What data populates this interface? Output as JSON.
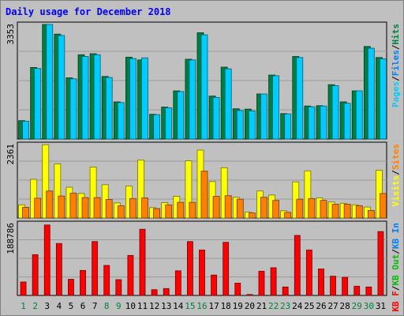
{
  "title": "Daily usage for December 2018",
  "colors": {
    "background": "#c0c0c0",
    "pages": "#00ffff",
    "files": "#00ccff",
    "hits": "#008040",
    "visits": "#ffff00",
    "sites": "#ff8000",
    "kb_in": "#0080ff",
    "kb_out": "#00c000",
    "kb_f": "#ff0000",
    "title": "#0000ff",
    "day_normal": "#000000",
    "day_weekend": "#008040"
  },
  "chart_data": [
    {
      "type": "bar",
      "panel": "top",
      "ymax_label": "3353",
      "ylim": [
        0,
        3353
      ],
      "right_labels": [
        {
          "text": "Pages",
          "color": "#00ccff"
        },
        {
          "text": "/",
          "color": "#000000"
        },
        {
          "text": "Files",
          "color": "#0080ff"
        },
        {
          "text": "/",
          "color": "#000000"
        },
        {
          "text": "Hits",
          "color": "#008040"
        }
      ],
      "categories": [
        "1",
        "2",
        "3",
        "4",
        "5",
        "6",
        "7",
        "8",
        "9",
        "10",
        "11",
        "12",
        "13",
        "14",
        "15",
        "16",
        "17",
        "18",
        "19",
        "20",
        "21",
        "22",
        "23",
        "24",
        "25",
        "26",
        "27",
        "28",
        "29",
        "30",
        "31"
      ],
      "series": [
        {
          "name": "Hits",
          "values": [
            535,
            2080,
            3330,
            3050,
            1780,
            2450,
            2480,
            1820,
            1080,
            2380,
            2300,
            720,
            930,
            1400,
            2320,
            3090,
            1250,
            2090,
            880,
            870,
            1310,
            1860,
            740,
            2400,
            960,
            970,
            1580,
            1080,
            1400,
            2690,
            2370
          ]
        },
        {
          "name": "Files",
          "values": [
            520,
            2050,
            3330,
            3010,
            1750,
            2400,
            2450,
            1790,
            1060,
            2340,
            2360,
            710,
            910,
            1380,
            2300,
            3030,
            1210,
            2040,
            830,
            820,
            1310,
            1840,
            730,
            2370,
            940,
            960,
            1550,
            1040,
            1400,
            2640,
            2330
          ]
        }
      ]
    },
    {
      "type": "bar",
      "panel": "middle",
      "ymax_label": "2361",
      "ylim": [
        0,
        2361
      ],
      "right_labels": [
        {
          "text": "Visits",
          "color": "#ffff00"
        },
        {
          "text": "/",
          "color": "#000000"
        },
        {
          "text": "Sites",
          "color": "#ff8000"
        }
      ],
      "categories": [
        "1",
        "2",
        "3",
        "4",
        "5",
        "6",
        "7",
        "8",
        "9",
        "10",
        "11",
        "12",
        "13",
        "14",
        "15",
        "16",
        "17",
        "18",
        "19",
        "20",
        "21",
        "22",
        "23",
        "24",
        "25",
        "26",
        "27",
        "28",
        "29",
        "30",
        "31"
      ],
      "series": [
        {
          "name": "Visits",
          "values": [
            420,
            1230,
            2330,
            1720,
            980,
            780,
            1620,
            1060,
            480,
            1020,
            1840,
            330,
            490,
            690,
            1820,
            2160,
            1160,
            1600,
            660,
            190,
            860,
            730,
            230,
            1150,
            1500,
            640,
            510,
            470,
            420,
            350,
            1520
          ]
        },
        {
          "name": "Sites",
          "values": [
            340,
            630,
            860,
            700,
            790,
            650,
            650,
            590,
            390,
            620,
            640,
            300,
            420,
            500,
            500,
            1490,
            690,
            710,
            600,
            160,
            660,
            560,
            180,
            600,
            620,
            560,
            440,
            440,
            390,
            240,
            780
          ]
        }
      ]
    },
    {
      "type": "bar",
      "panel": "bottom",
      "ymax_label": "188786",
      "ylim": [
        0,
        188786
      ],
      "right_labels": [
        {
          "text": "KB F",
          "color": "#ff0000"
        },
        {
          "text": "/",
          "color": "#000000"
        },
        {
          "text": "KB Out",
          "color": "#00c000"
        },
        {
          "text": "/",
          "color": "#000000"
        },
        {
          "text": "KB In",
          "color": "#0080ff"
        }
      ],
      "categories": [
        "1",
        "2",
        "3",
        "4",
        "5",
        "6",
        "7",
        "8",
        "9",
        "10",
        "11",
        "12",
        "13",
        "14",
        "15",
        "16",
        "17",
        "18",
        "19",
        "20",
        "21",
        "22",
        "23",
        "24",
        "25",
        "26",
        "27",
        "28",
        "29",
        "30",
        "31"
      ],
      "series": [
        {
          "name": "KB F",
          "values": [
            35000,
            106000,
            183000,
            135000,
            42000,
            65000,
            140000,
            78000,
            41000,
            104000,
            172000,
            15000,
            18000,
            64000,
            140000,
            118000,
            53000,
            138000,
            32000,
            2500,
            63000,
            72000,
            22000,
            156000,
            118000,
            69000,
            50000,
            47000,
            24000,
            22000,
            166000
          ]
        }
      ],
      "day_colors": [
        "#008040",
        "#008040",
        "#000000",
        "#000000",
        "#000000",
        "#000000",
        "#000000",
        "#008040",
        "#008040",
        "#000000",
        "#000000",
        "#000000",
        "#000000",
        "#000000",
        "#008040",
        "#008040",
        "#000000",
        "#000000",
        "#000000",
        "#000000",
        "#000000",
        "#008040",
        "#008040",
        "#000000",
        "#000000",
        "#000000",
        "#000000",
        "#000000",
        "#008040",
        "#008040",
        "#000000"
      ]
    }
  ]
}
